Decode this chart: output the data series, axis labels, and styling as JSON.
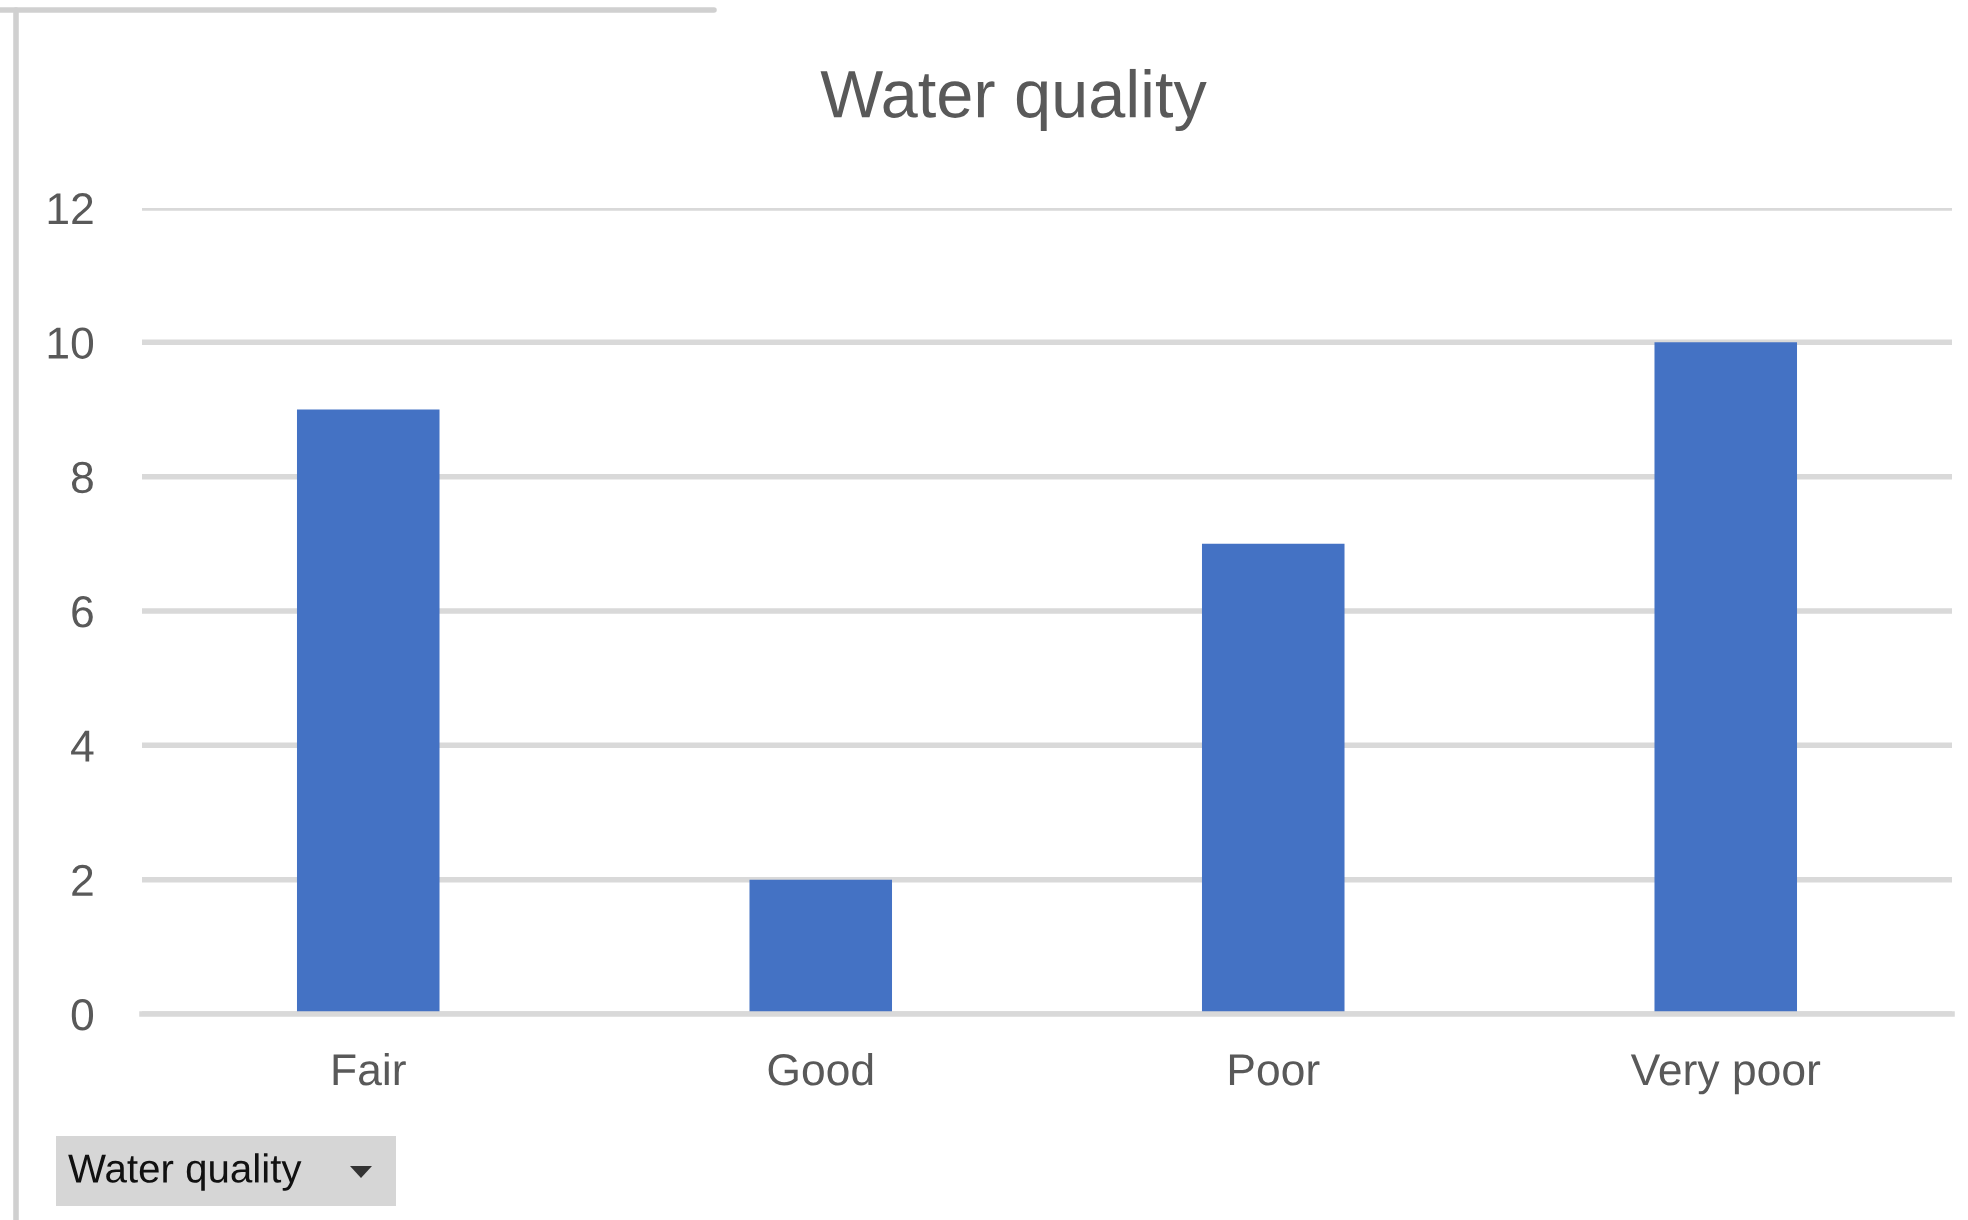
{
  "chart_data": {
    "type": "bar",
    "title": "Water quality",
    "categories": [
      "Fair",
      "Good",
      "Poor",
      "Very poor"
    ],
    "values": [
      9,
      2,
      7,
      10
    ],
    "color": "#4472c4",
    "ylim": [
      0,
      12
    ],
    "yticks": [
      0,
      2,
      4,
      6,
      8,
      10,
      12
    ],
    "grid": "y",
    "annotations": [
      "Water quality"
    ]
  }
}
